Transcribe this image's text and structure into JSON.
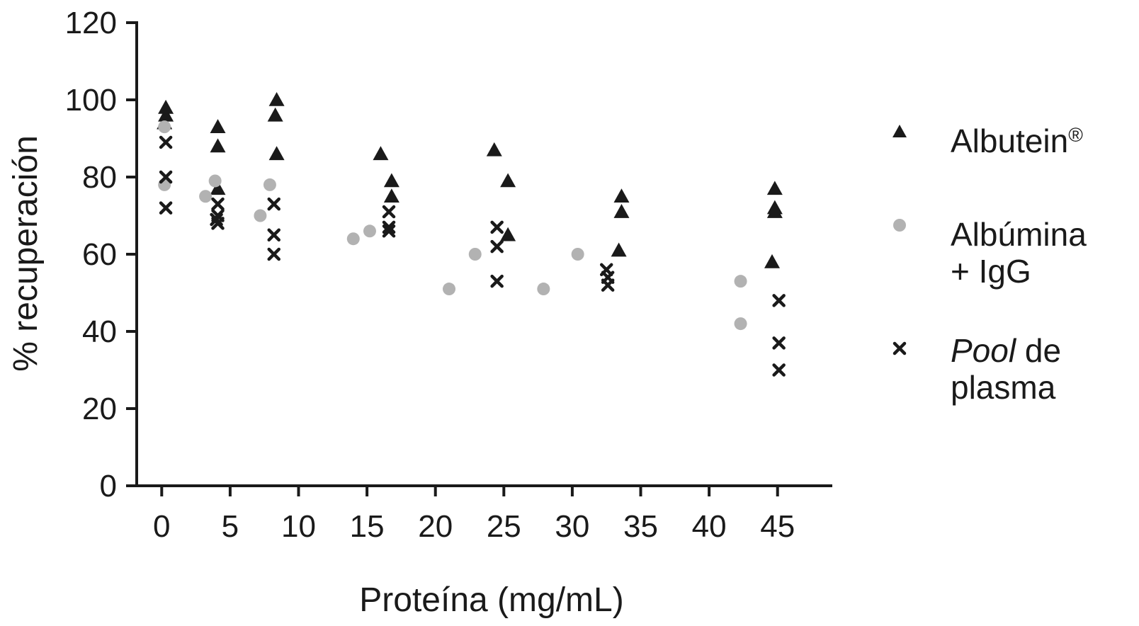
{
  "chart_data": {
    "type": "scatter",
    "xlabel": "Proteína (mg/mL)",
    "ylabel": "% recuperación",
    "xlim": [
      -2.5,
      49
    ],
    "ylim": [
      0,
      120
    ],
    "xticks": [
      0,
      5,
      10,
      15,
      20,
      25,
      30,
      35,
      40,
      45
    ],
    "yticks": [
      0,
      20,
      40,
      60,
      80,
      100,
      120
    ],
    "legend_position": "right",
    "series": [
      {
        "key": "albutein",
        "name": "Albutein",
        "name_sup": "®",
        "marker": "triangle",
        "color": "#1a1a1a",
        "points": [
          {
            "x": 0.3,
            "y": 98
          },
          {
            "x": 0.3,
            "y": 96
          },
          {
            "x": 0.2,
            "y": 94
          },
          {
            "x": 4.1,
            "y": 93
          },
          {
            "x": 4.1,
            "y": 88
          },
          {
            "x": 4.1,
            "y": 77
          },
          {
            "x": 8.4,
            "y": 100
          },
          {
            "x": 8.3,
            "y": 96
          },
          {
            "x": 8.4,
            "y": 86
          },
          {
            "x": 16.0,
            "y": 86
          },
          {
            "x": 16.8,
            "y": 79
          },
          {
            "x": 16.8,
            "y": 75
          },
          {
            "x": 24.3,
            "y": 87
          },
          {
            "x": 25.3,
            "y": 79
          },
          {
            "x": 25.3,
            "y": 65
          },
          {
            "x": 33.6,
            "y": 75
          },
          {
            "x": 33.6,
            "y": 71
          },
          {
            "x": 33.4,
            "y": 61
          },
          {
            "x": 44.8,
            "y": 77
          },
          {
            "x": 44.8,
            "y": 72
          },
          {
            "x": 44.8,
            "y": 71
          },
          {
            "x": 44.6,
            "y": 58
          }
        ]
      },
      {
        "key": "albumina",
        "name": "Albúmina",
        "name_line2": "+ IgG",
        "marker": "circle",
        "color": "#b2b2b2",
        "points": [
          {
            "x": 0.2,
            "y": 93
          },
          {
            "x": 0.2,
            "y": 78
          },
          {
            "x": 3.9,
            "y": 79
          },
          {
            "x": 3.2,
            "y": 75
          },
          {
            "x": 7.2,
            "y": 70
          },
          {
            "x": 7.9,
            "y": 78
          },
          {
            "x": 14.0,
            "y": 64
          },
          {
            "x": 15.2,
            "y": 66
          },
          {
            "x": 21.0,
            "y": 51
          },
          {
            "x": 22.9,
            "y": 60
          },
          {
            "x": 27.9,
            "y": 51
          },
          {
            "x": 30.4,
            "y": 60
          },
          {
            "x": 42.3,
            "y": 53
          },
          {
            "x": 42.3,
            "y": 42
          }
        ]
      },
      {
        "key": "pool",
        "name": "Pool",
        "name_rest": " de",
        "name_line2": "plasma",
        "marker": "x",
        "color": "#1a1a1a",
        "points": [
          {
            "x": 0.3,
            "y": 89
          },
          {
            "x": 0.3,
            "y": 80
          },
          {
            "x": 0.3,
            "y": 72
          },
          {
            "x": 4.1,
            "y": 73
          },
          {
            "x": 4.1,
            "y": 70
          },
          {
            "x": 4.0,
            "y": 69
          },
          {
            "x": 4.1,
            "y": 68
          },
          {
            "x": 8.2,
            "y": 73
          },
          {
            "x": 8.2,
            "y": 65
          },
          {
            "x": 8.2,
            "y": 60
          },
          {
            "x": 16.6,
            "y": 71
          },
          {
            "x": 16.6,
            "y": 67
          },
          {
            "x": 16.6,
            "y": 66
          },
          {
            "x": 24.5,
            "y": 67
          },
          {
            "x": 24.5,
            "y": 62
          },
          {
            "x": 24.5,
            "y": 53
          },
          {
            "x": 32.5,
            "y": 56
          },
          {
            "x": 32.6,
            "y": 54
          },
          {
            "x": 32.6,
            "y": 52
          },
          {
            "x": 45.1,
            "y": 48
          },
          {
            "x": 45.1,
            "y": 37
          },
          {
            "x": 45.1,
            "y": 30
          }
        ]
      }
    ]
  }
}
